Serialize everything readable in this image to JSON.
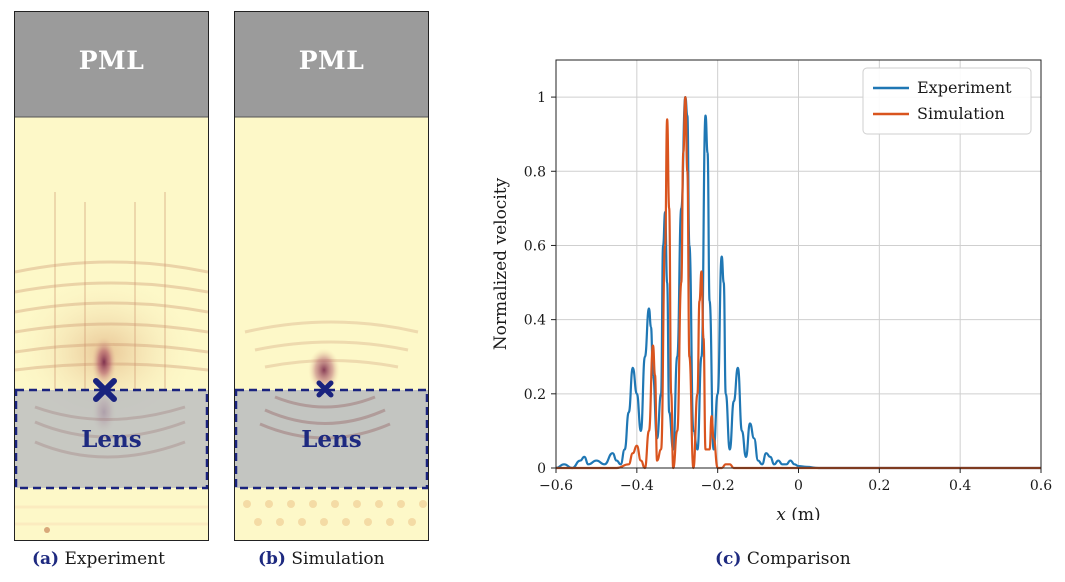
{
  "panels": [
    {
      "pml": "PML",
      "lens": "Lens",
      "caption_tag": "(a)",
      "caption_text": "Experiment"
    },
    {
      "pml": "PML",
      "lens": "Lens",
      "caption_tag": "(b)",
      "caption_text": "Simulation"
    }
  ],
  "comparison_caption": {
    "tag": "(c)",
    "text": "Comparison"
  },
  "colors": {
    "experiment": "#1f77b4",
    "simulation": "#d9541e",
    "pml": "#9b9b9b",
    "field_bg": "#fdf8c8",
    "lens_overlay": "#b9bcc0",
    "marker": "#1a237e"
  },
  "chart_data": {
    "type": "line",
    "xlabel_var": "x",
    "xlabel_unit": " (m)",
    "ylabel": "Normalized velocity",
    "xlim": [
      -0.6,
      0.6
    ],
    "ylim": [
      0,
      1.1
    ],
    "xticks": [
      -0.6,
      -0.4,
      -0.2,
      0,
      0.2,
      0.4,
      0.6
    ],
    "xtick_labels": [
      "−0.6",
      "−0.4",
      "−0.2",
      "0",
      "0.2",
      "0.4",
      "0.6"
    ],
    "yticks": [
      0,
      0.2,
      0.4,
      0.6,
      0.8,
      1
    ],
    "ytick_labels": [
      "0",
      "0.2",
      "0.4",
      "0.6",
      "0.8",
      "1"
    ],
    "grid": true,
    "legend_position": "top-right",
    "series": [
      {
        "name": "Experiment",
        "color": "#1f77b4",
        "x": [
          -0.6,
          -0.58,
          -0.56,
          -0.54,
          -0.53,
          -0.52,
          -0.5,
          -0.48,
          -0.46,
          -0.45,
          -0.44,
          -0.43,
          -0.42,
          -0.41,
          -0.4,
          -0.39,
          -0.38,
          -0.37,
          -0.365,
          -0.36,
          -0.35,
          -0.34,
          -0.335,
          -0.33,
          -0.325,
          -0.32,
          -0.31,
          -0.3,
          -0.29,
          -0.28,
          -0.275,
          -0.27,
          -0.26,
          -0.25,
          -0.24,
          -0.23,
          -0.225,
          -0.22,
          -0.21,
          -0.2,
          -0.19,
          -0.185,
          -0.18,
          -0.17,
          -0.16,
          -0.15,
          -0.14,
          -0.13,
          -0.12,
          -0.11,
          -0.1,
          -0.09,
          -0.08,
          -0.07,
          -0.06,
          -0.05,
          -0.04,
          -0.03,
          -0.02,
          -0.01,
          0,
          0.02,
          0.05,
          0.1,
          0.2,
          0.3,
          0.4,
          0.5,
          0.6
        ],
        "y": [
          0,
          0.01,
          0,
          0.02,
          0.03,
          0.01,
          0.02,
          0.01,
          0.04,
          0.02,
          0.01,
          0.05,
          0.15,
          0.27,
          0.2,
          0.1,
          0.3,
          0.43,
          0.38,
          0.25,
          0.08,
          0.2,
          0.6,
          0.69,
          0.5,
          0.15,
          0.05,
          0.3,
          0.7,
          1.0,
          0.95,
          0.6,
          0.1,
          0.05,
          0.3,
          0.95,
          0.85,
          0.45,
          0.05,
          0.2,
          0.57,
          0.5,
          0.2,
          0.05,
          0.18,
          0.27,
          0.1,
          0.03,
          0.12,
          0.08,
          0.02,
          0.01,
          0.04,
          0.03,
          0.01,
          0.02,
          0.01,
          0.01,
          0.02,
          0.01,
          0.005,
          0.003,
          0,
          0,
          0,
          0,
          0,
          0,
          0
        ]
      },
      {
        "name": "Simulation",
        "color": "#d9541e",
        "x": [
          -0.6,
          -0.45,
          -0.42,
          -0.41,
          -0.4,
          -0.39,
          -0.38,
          -0.37,
          -0.36,
          -0.355,
          -0.35,
          -0.34,
          -0.33,
          -0.325,
          -0.32,
          -0.315,
          -0.31,
          -0.3,
          -0.29,
          -0.285,
          -0.28,
          -0.275,
          -0.27,
          -0.26,
          -0.25,
          -0.245,
          -0.24,
          -0.235,
          -0.23,
          -0.22,
          -0.215,
          -0.21,
          -0.2,
          -0.19,
          -0.18,
          -0.17,
          -0.16,
          -0.14,
          0,
          0.6
        ],
        "y": [
          0,
          0,
          0.01,
          0.04,
          0.06,
          0.02,
          0,
          0.1,
          0.33,
          0.25,
          0.02,
          0.05,
          0.6,
          0.94,
          0.7,
          0.2,
          0,
          0.1,
          0.5,
          0.85,
          1.0,
          0.8,
          0.3,
          0,
          0.2,
          0.45,
          0.53,
          0.35,
          0.05,
          0.05,
          0.14,
          0.08,
          0,
          0,
          0.01,
          0.01,
          0,
          0,
          0,
          0
        ]
      }
    ]
  }
}
